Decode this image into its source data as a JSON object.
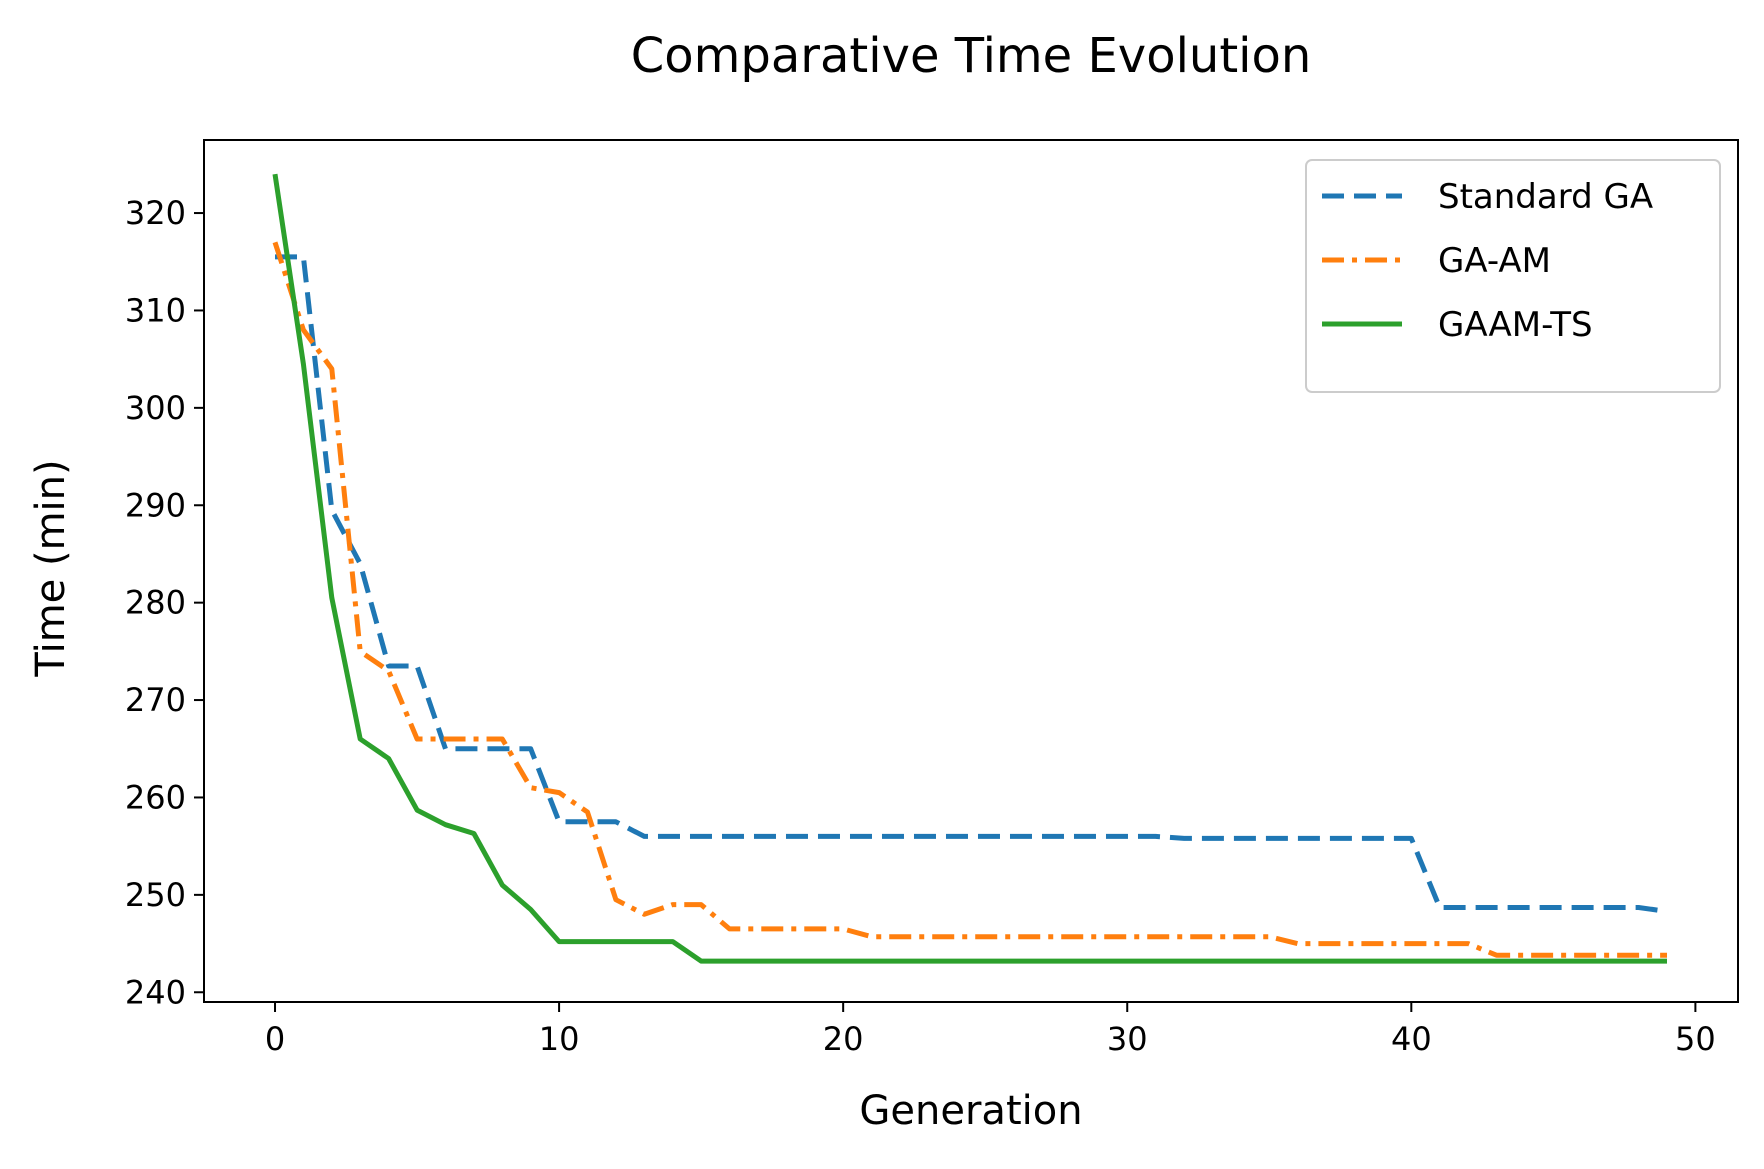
{
  "chart_data": {
    "type": "line",
    "title": "Comparative Time Evolution",
    "xlabel": "Generation",
    "ylabel": "Time (min)",
    "xlim": [
      -2.5,
      51.5
    ],
    "ylim": [
      239,
      327.5
    ],
    "xticks": [
      0,
      10,
      20,
      30,
      40,
      50
    ],
    "yticks": [
      240,
      250,
      260,
      270,
      280,
      290,
      300,
      310,
      320
    ],
    "grid": false,
    "legend": "top-right",
    "x": [
      0,
      1,
      2,
      3,
      4,
      5,
      6,
      7,
      8,
      9,
      10,
      11,
      12,
      13,
      14,
      15,
      16,
      17,
      18,
      19,
      20,
      21,
      22,
      23,
      24,
      25,
      26,
      27,
      28,
      29,
      30,
      31,
      32,
      33,
      34,
      35,
      36,
      37,
      38,
      39,
      40,
      41,
      42,
      43,
      44,
      45,
      46,
      47,
      48,
      49
    ],
    "series": [
      {
        "name": "Standard GA",
        "color": "#1f77b4",
        "style": "dashed",
        "values": [
          315.5,
          315.5,
          289.5,
          284.0,
          273.5,
          273.5,
          265.0,
          265.0,
          265.0,
          265.0,
          257.5,
          257.5,
          257.5,
          256.0,
          256.0,
          256.0,
          256.0,
          256.0,
          256.0,
          256.0,
          256.0,
          256.0,
          256.0,
          256.0,
          256.0,
          256.0,
          256.0,
          256.0,
          256.0,
          256.0,
          256.0,
          256.0,
          255.8,
          255.8,
          255.8,
          255.8,
          255.8,
          255.8,
          255.8,
          255.8,
          255.8,
          248.7,
          248.7,
          248.7,
          248.7,
          248.7,
          248.7,
          248.7,
          248.7,
          248.3
        ]
      },
      {
        "name": "GA-AM",
        "color": "#ff7f0e",
        "style": "dashdot",
        "values": [
          317.0,
          308.0,
          304.0,
          275.0,
          273.0,
          266.0,
          266.0,
          266.0,
          266.0,
          261.0,
          260.5,
          258.5,
          249.5,
          248.0,
          249.0,
          249.0,
          246.5,
          246.5,
          246.5,
          246.5,
          246.5,
          245.7,
          245.7,
          245.7,
          245.7,
          245.7,
          245.7,
          245.7,
          245.7,
          245.7,
          245.7,
          245.7,
          245.7,
          245.7,
          245.7,
          245.7,
          245.0,
          245.0,
          245.0,
          245.0,
          245.0,
          245.0,
          245.0,
          243.8,
          243.8,
          243.8,
          243.8,
          243.8,
          243.8,
          243.8
        ]
      },
      {
        "name": "GAAM-TS",
        "color": "#2ca02c",
        "style": "solid",
        "values": [
          324.0,
          304.5,
          280.5,
          266.0,
          264.0,
          258.7,
          257.2,
          256.3,
          251.0,
          248.5,
          245.2,
          245.2,
          245.2,
          245.2,
          245.2,
          243.2,
          243.2,
          243.2,
          243.2,
          243.2,
          243.2,
          243.2,
          243.2,
          243.2,
          243.2,
          243.2,
          243.2,
          243.2,
          243.2,
          243.2,
          243.2,
          243.2,
          243.2,
          243.2,
          243.2,
          243.2,
          243.2,
          243.2,
          243.2,
          243.2,
          243.2,
          243.2,
          243.2,
          243.2,
          243.2,
          243.2,
          243.2,
          243.2,
          243.2,
          243.2
        ]
      }
    ]
  }
}
